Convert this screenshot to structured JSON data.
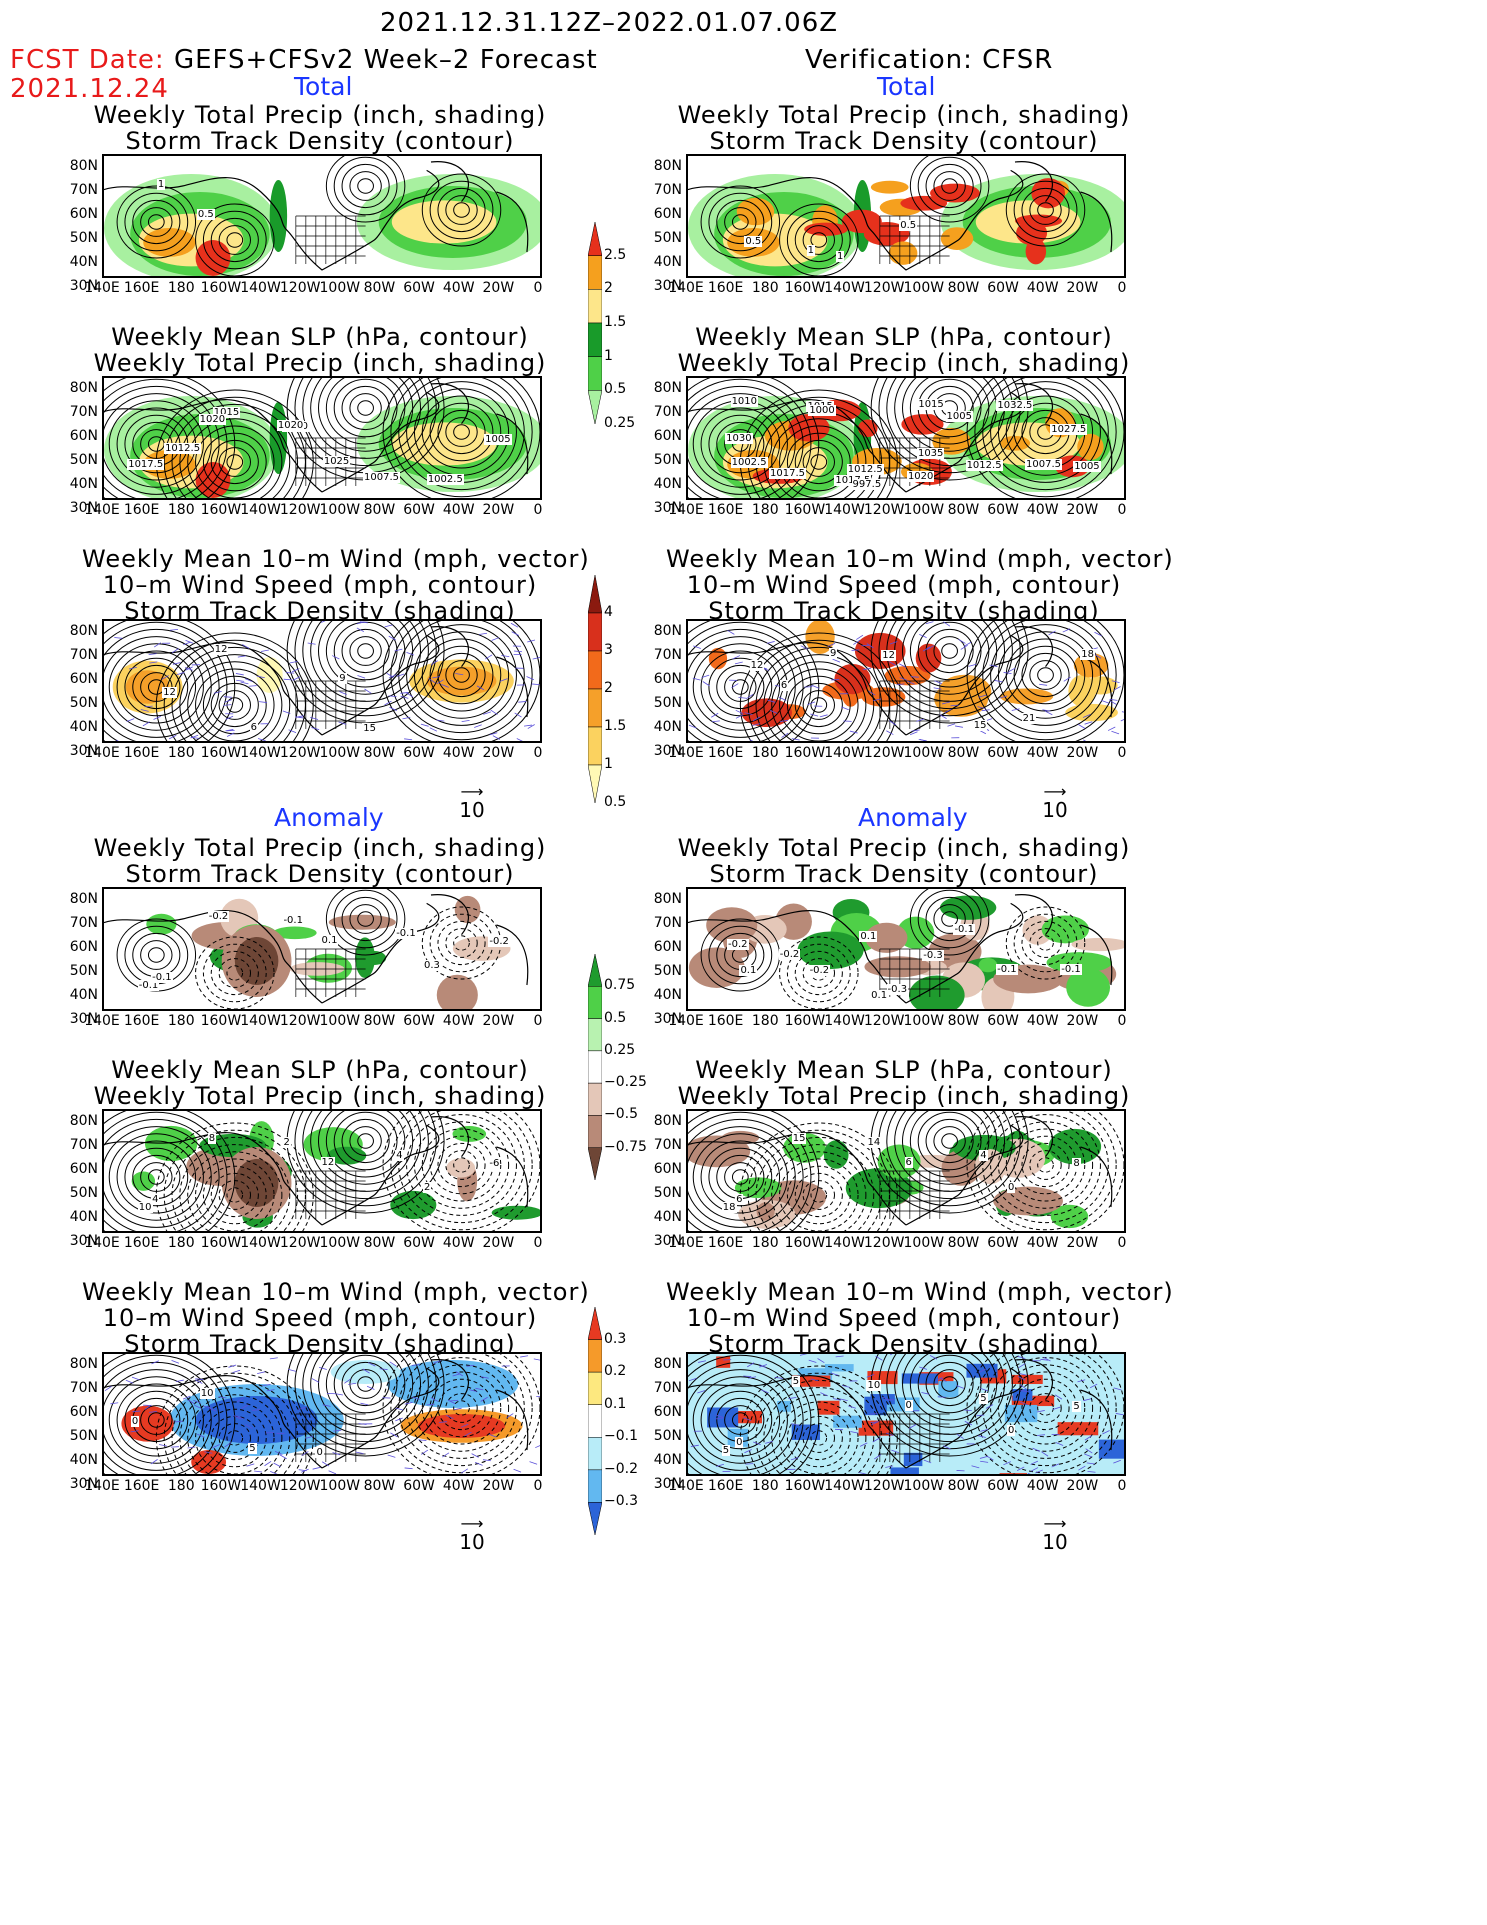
{
  "header": {
    "period": "2021.12.31.12Z–2022.01.07.06Z",
    "fcst_label": "FCST Date:",
    "fcst_model": "GEFS+CFSv2 Week–2 Forecast",
    "fcst_date": "2021.12.24",
    "verification": "Verification: CFSR"
  },
  "sections": {
    "total": "Total",
    "anomaly": "Anomaly"
  },
  "panel_titles": {
    "precip_track": [
      "Weekly Total Precip (inch, shading)",
      "Storm Track Density (contour)"
    ],
    "slp_precip": [
      "Weekly Mean SLP (hPa, contour)",
      "Weekly Total Precip (inch, shading)"
    ],
    "wind_track": [
      "Weekly Mean 10–m Wind (mph, vector)",
      "10–m Wind Speed (mph, contour)",
      "Storm Track Density (shading)"
    ]
  },
  "axes": {
    "lat_labels": [
      "80N",
      "70N",
      "60N",
      "50N",
      "40N",
      "30N"
    ],
    "lon_labels": [
      "140E",
      "160E",
      "180",
      "160W",
      "140W",
      "120W",
      "100W",
      "80W",
      "60W",
      "40W",
      "20W",
      "0"
    ]
  },
  "vector_ref": "10",
  "colorbars": {
    "precip_total": {
      "labels": [
        "2.5",
        "2",
        "1.5",
        "1",
        "0.5",
        "0.25"
      ],
      "colors": [
        "#e6311c",
        "#f5a01e",
        "#fde68a",
        "#199b2a",
        "#4fd048",
        "#a8f0a0"
      ]
    },
    "track_total": {
      "labels": [
        "4",
        "3",
        "2",
        "1.5",
        "1",
        "0.5"
      ],
      "colors": [
        "#8b1a0f",
        "#d8301c",
        "#f26a1b",
        "#f5a02a",
        "#fbd25f",
        "#fff9b5"
      ]
    },
    "precip_anom": {
      "labels": [
        "0.75",
        "0.5",
        "0.25",
        "−0.25",
        "−0.5",
        "−0.75"
      ],
      "colors": [
        "#1f9b2e",
        "#4fd048",
        "#b8f2b0",
        "#ffffff",
        "#e4c7b8",
        "#b88a78",
        "#6e4636"
      ]
    },
    "track_anom": {
      "labels": [
        "0.3",
        "0.2",
        "0.1",
        "−0.1",
        "−0.2",
        "−0.3"
      ],
      "colors": [
        "#e63a22",
        "#f59a2a",
        "#fde87f",
        "#ffffff",
        "#b8ecf8",
        "#62b8f0",
        "#2c64d8"
      ]
    }
  },
  "panels": {
    "fc_tot_1": {
      "contour_labels": [
        "1",
        "0.5"
      ]
    },
    "vf_tot_1": {
      "contour_labels": [
        "0.5",
        "1",
        "1",
        "0.5"
      ]
    },
    "fc_tot_2": {
      "contour_labels": [
        "1017.5",
        "1015",
        "1010",
        "1025",
        "1007.5",
        "1002.5",
        "1005",
        "1012.5",
        "1020",
        "1020"
      ]
    },
    "vf_tot_2": {
      "contour_labels": [
        "1030",
        "1017.5",
        "1012.5",
        "1035",
        "1012.5",
        "1032.5",
        "1027.5",
        "1010",
        "1015",
        "1017.5",
        "1020",
        "1005",
        "1007.5",
        "1005",
        "1002.5",
        "1000",
        "997.5",
        "1015"
      ]
    },
    "fc_tot_3": {
      "contour_labels": [
        "12",
        "12",
        "6",
        "9",
        "15"
      ]
    },
    "vf_tot_3": {
      "contour_labels": [
        "12",
        "6",
        "9",
        "12",
        "15",
        "21",
        "18"
      ]
    },
    "fc_an_1": {
      "contour_labels": [
        "-0.1",
        "-0.2",
        "-0.1",
        "0.1",
        "-0.1",
        "0.3",
        "-0.2",
        "-0.1"
      ]
    },
    "vf_an_1": {
      "contour_labels": [
        "-0.2",
        "-0.2",
        "0.1",
        "-0.3",
        "-0.1",
        "-0.1",
        "-0.1",
        "0.1",
        "-0.2",
        "0.1",
        "-0.3"
      ]
    },
    "fc_an_2": {
      "contour_labels": [
        "10",
        "8",
        "2",
        "12",
        "4",
        "2",
        "-6",
        "4"
      ]
    },
    "vf_an_2": {
      "contour_labels": [
        "18",
        "15",
        "14",
        "6",
        "4",
        "0",
        "8",
        "6"
      ]
    },
    "fc_an_3": {
      "contour_labels": [
        "0",
        "10",
        "5",
        "0"
      ]
    },
    "vf_an_3": {
      "contour_labels": [
        "5",
        "5",
        "10",
        "0",
        "5",
        "0",
        "5",
        "0"
      ]
    }
  }
}
